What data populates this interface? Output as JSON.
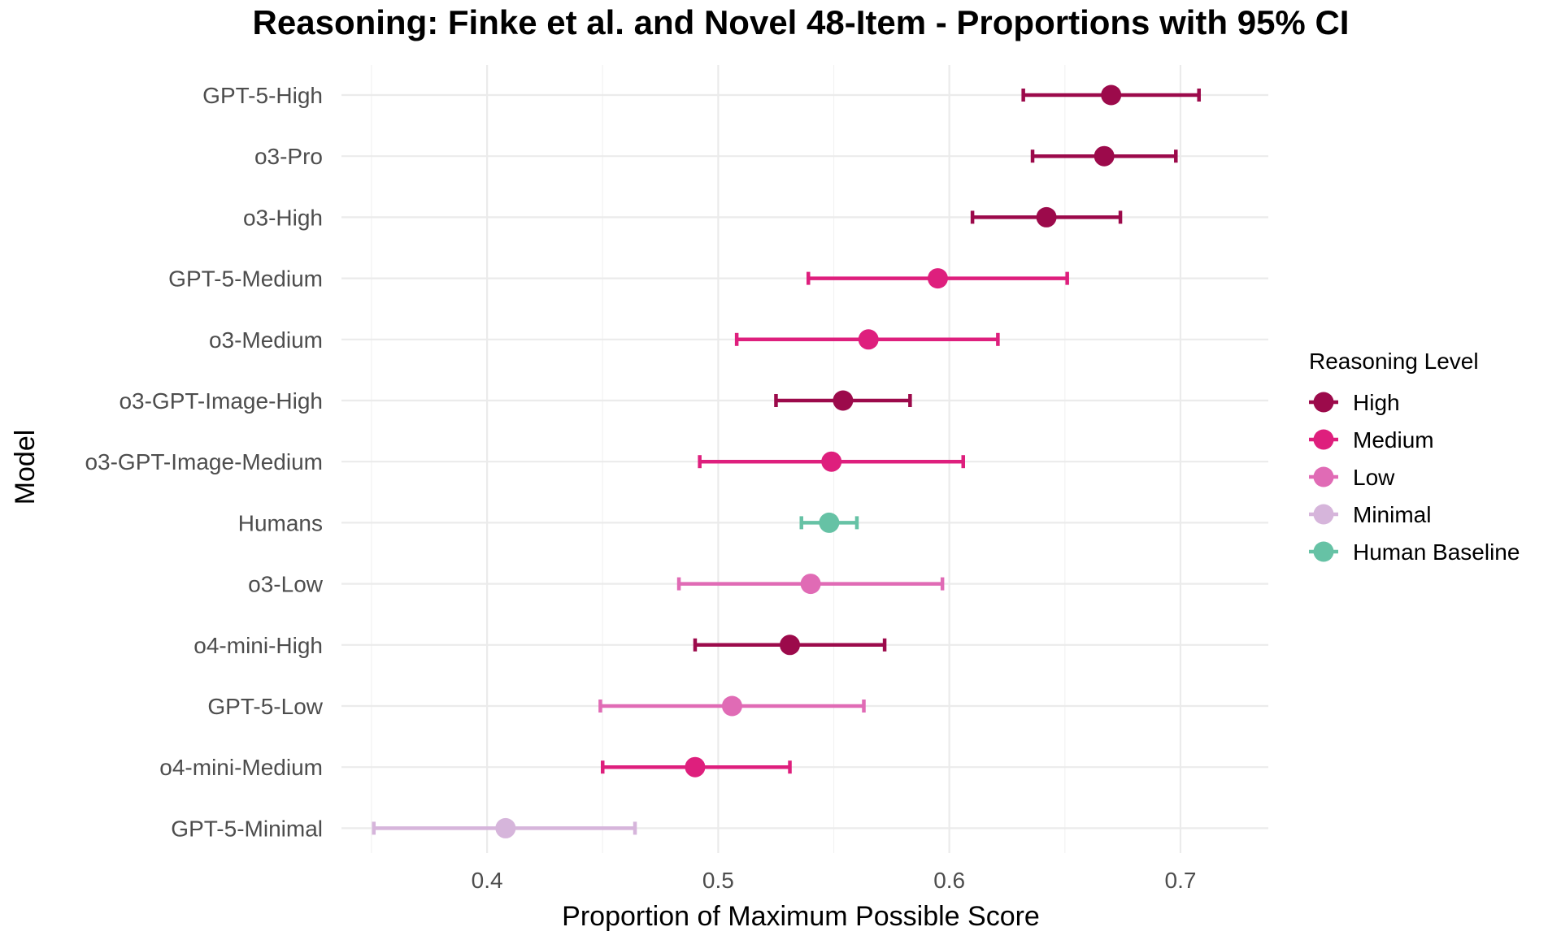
{
  "chart_data": {
    "type": "scatter",
    "title": "Reasoning: Finke et al. and Novel 48-Item - Proportions with 95% CI",
    "xlabel": "Proportion of Maximum Possible Score",
    "ylabel": "Model",
    "xlim": [
      0.337,
      0.738
    ],
    "x_ticks": [
      "0.4",
      "0.5",
      "0.6",
      "0.7"
    ],
    "grid": true,
    "legend": {
      "title": "Reasoning Level",
      "placement": "right",
      "entries": [
        {
          "label": "High",
          "color": "#9c0a4b"
        },
        {
          "label": "Medium",
          "color": "#de1f7d"
        },
        {
          "label": "Low",
          "color": "#e06bb5"
        },
        {
          "label": "Minimal",
          "color": "#d6b5db"
        },
        {
          "label": "Human Baseline",
          "color": "#66c2a5"
        }
      ]
    },
    "points": [
      {
        "model": "GPT-5-High",
        "level": "High",
        "value": 0.67,
        "ci_low": 0.632,
        "ci_high": 0.708
      },
      {
        "model": "o3-Pro",
        "level": "High",
        "value": 0.667,
        "ci_low": 0.636,
        "ci_high": 0.698
      },
      {
        "model": "o3-High",
        "level": "High",
        "value": 0.642,
        "ci_low": 0.61,
        "ci_high": 0.674
      },
      {
        "model": "GPT-5-Medium",
        "level": "Medium",
        "value": 0.595,
        "ci_low": 0.539,
        "ci_high": 0.651
      },
      {
        "model": "o3-Medium",
        "level": "Medium",
        "value": 0.565,
        "ci_low": 0.508,
        "ci_high": 0.621
      },
      {
        "model": "o3-GPT-Image-High",
        "level": "High",
        "value": 0.554,
        "ci_low": 0.525,
        "ci_high": 0.583
      },
      {
        "model": "o3-GPT-Image-Medium",
        "level": "Medium",
        "value": 0.549,
        "ci_low": 0.492,
        "ci_high": 0.606
      },
      {
        "model": "Humans",
        "level": "Human Baseline",
        "value": 0.548,
        "ci_low": 0.536,
        "ci_high": 0.56
      },
      {
        "model": "o3-Low",
        "level": "Low",
        "value": 0.54,
        "ci_low": 0.483,
        "ci_high": 0.597
      },
      {
        "model": "o4-mini-High",
        "level": "High",
        "value": 0.531,
        "ci_low": 0.49,
        "ci_high": 0.572
      },
      {
        "model": "GPT-5-Low",
        "level": "Low",
        "value": 0.506,
        "ci_low": 0.449,
        "ci_high": 0.563
      },
      {
        "model": "o4-mini-Medium",
        "level": "Medium",
        "value": 0.49,
        "ci_low": 0.45,
        "ci_high": 0.531
      },
      {
        "model": "GPT-5-Minimal",
        "level": "Minimal",
        "value": 0.408,
        "ci_low": 0.351,
        "ci_high": 0.464
      }
    ]
  }
}
